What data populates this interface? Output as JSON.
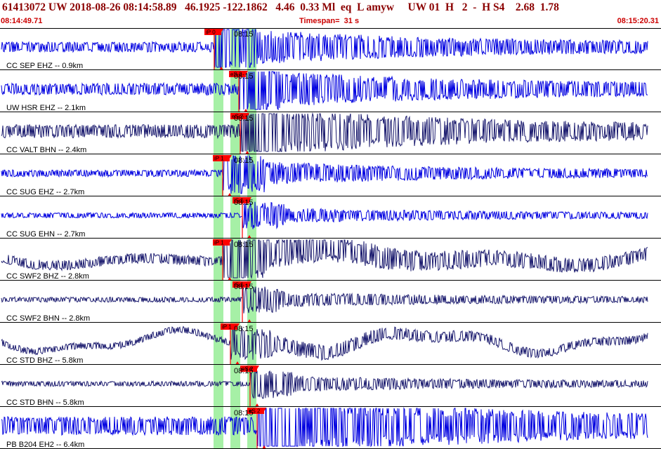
{
  "header": {
    "title": "61413072 UW 2018-08-26 08:14:58.89   46.1925 -122.1862   4.46  0.33 Ml  eq  L amyw     UW 01  H   2  -  H S4    2.68  1.78",
    "time_start": "08:14:49.71",
    "timespan": "Timespan=  31 s",
    "time_end": "08:15:20.31"
  },
  "colors": {
    "title": "#8b0000",
    "time_text": "#cc0000",
    "trace_blue": "#0000e0",
    "trace_navy": "#1a1a6e",
    "pick_red": "#ff0000",
    "window_green": "#a6f0a6",
    "divider": "#000000"
  },
  "traces": [
    {
      "label": "CC SEP EHZ -- 0.9km",
      "color": "blue",
      "pick": "iP 0",
      "time_tick": "08:15",
      "amp": 6,
      "burst": 1.0,
      "wave": 0
    },
    {
      "label": "UW HSR EHZ -- 2.1km",
      "color": "blue",
      "pick": "eS 2",
      "time_tick": "08:15",
      "amp": 7,
      "burst": 0.8,
      "wave": 0
    },
    {
      "label": "CC VALT BHN -- 2.4km",
      "color": "navy",
      "pick": "eS 2",
      "time_tick": "08:15",
      "amp": 8,
      "burst": 1.0,
      "wave": 0
    },
    {
      "label": "CC SUG EHZ -- 2.7km",
      "color": "blue",
      "pick": "iP 1",
      "time_tick": "08:15",
      "amp": 4,
      "burst": 1.0,
      "wave": 0
    },
    {
      "label": "CC SUG EHN -- 2.7km",
      "color": "blue",
      "pick": "iS 1",
      "time_tick": "08:15",
      "amp": 3,
      "burst": 0.8,
      "wave": 0
    },
    {
      "label": "CC SWF2 BHZ -- 2.8km",
      "color": "navy",
      "pick": "iP 1",
      "time_tick": "08:15",
      "amp": 6,
      "burst": 1.0,
      "wave": 1
    },
    {
      "label": "CC SWF2 BHN -- 2.8km",
      "color": "navy",
      "pick": "iS 1",
      "time_tick": "08:15",
      "amp": 3,
      "burst": 0.8,
      "wave": 0
    },
    {
      "label": "CC STD BHZ -- 5.8km",
      "color": "navy",
      "pick": "iP 1",
      "time_tick": "08:15",
      "amp": 4,
      "burst": 0.7,
      "wave": 2
    },
    {
      "label": "CC STD BHN -- 5.8km",
      "color": "navy",
      "pick": "eS 2",
      "time_tick": "08:15",
      "amp": 3,
      "burst": 0.9,
      "wave": 0
    },
    {
      "label": "PB B204 EH2 -- 6.4km",
      "color": "blue",
      "pick": "eS 2",
      "time_tick": "08:15",
      "amp": 11,
      "burst": 1.0,
      "wave": 0
    }
  ]
}
